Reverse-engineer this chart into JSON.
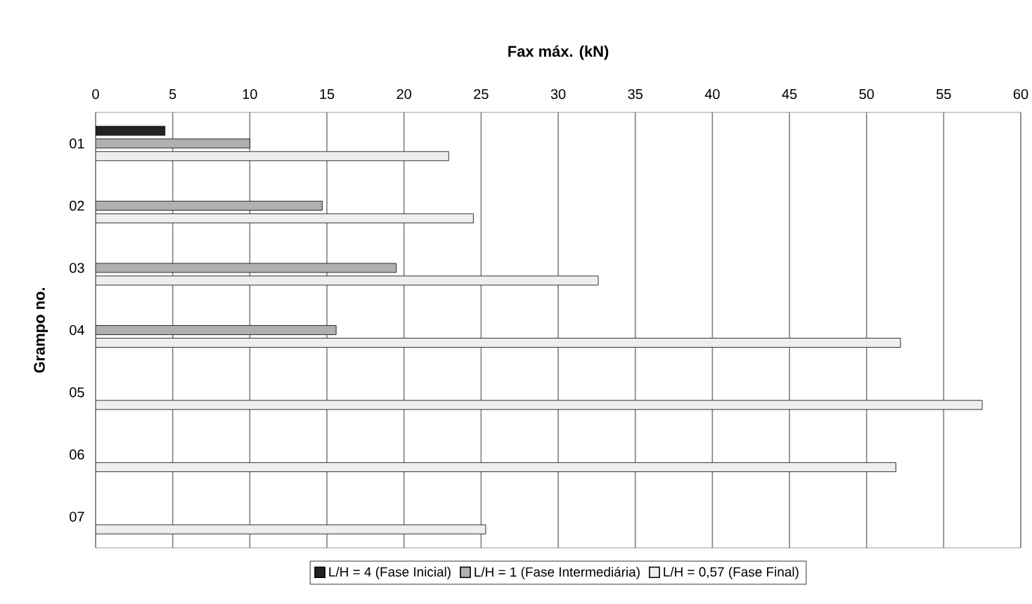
{
  "chart_data": {
    "type": "bar",
    "orientation": "horizontal",
    "xlabel": "Fax máx. (kN)",
    "ylabel": "Grampo no.",
    "categories": [
      "01",
      "02",
      "03",
      "04",
      "05",
      "06",
      "07"
    ],
    "series": [
      {
        "name": "L/H = 4 (Fase Inicial)",
        "color": "#222222",
        "values": [
          4.5,
          null,
          null,
          null,
          null,
          null,
          null
        ]
      },
      {
        "name": "L/H = 1 (Fase Intermediária)",
        "color": "#b0b0b0",
        "values": [
          10.0,
          14.7,
          19.5,
          15.6,
          null,
          null,
          null
        ]
      },
      {
        "name": "L/H = 0,57 (Fase Final)",
        "color": "#eeeeee",
        "values": [
          22.9,
          24.5,
          32.6,
          52.2,
          57.5,
          51.9,
          25.3
        ]
      }
    ],
    "xlim": [
      0,
      60
    ],
    "xticks": [
      0,
      5,
      10,
      15,
      20,
      25,
      30,
      35,
      40,
      45,
      50,
      55,
      60
    ],
    "grid": "x",
    "legend": "bottom"
  }
}
